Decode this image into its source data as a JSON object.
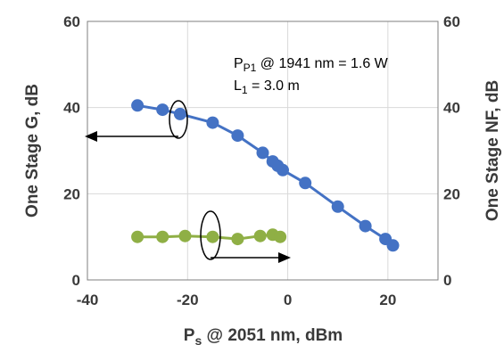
{
  "chart_data": {
    "type": "line",
    "xlabel": "P",
    "xlabel_sub": "s",
    "xlabel_rest": " @ 2051 nm, dBm",
    "ylabel_left": "One Stage G, dB",
    "ylabel_right": "One Stage NF, dB",
    "xlim": [
      -40,
      30
    ],
    "ylim_left": [
      0,
      60
    ],
    "ylim_right": [
      0,
      60
    ],
    "x_ticks": [
      -40,
      -20,
      0,
      20
    ],
    "y_ticks": [
      0,
      20,
      40,
      60
    ],
    "grid": true,
    "annotations": [
      {
        "parts": [
          {
            "t": "P"
          },
          {
            "t": "P1",
            "sub": true
          },
          {
            "t": " @ 1941 nm = 1.6 W"
          }
        ]
      },
      {
        "parts": [
          {
            "t": "L"
          },
          {
            "t": "1",
            "sub": true
          },
          {
            "t": " = 3.0 m"
          }
        ]
      }
    ],
    "series": [
      {
        "axis": "left",
        "color": "#4472c4",
        "x": [
          -30,
          -25,
          -21.5,
          -15,
          -10,
          -5,
          -3,
          -2,
          -1,
          3.5,
          10,
          15.5,
          19.5,
          21
        ],
        "y": [
          40.5,
          39.5,
          38.5,
          36.5,
          33.5,
          29.5,
          27.5,
          26.5,
          25.5,
          22.5,
          17,
          12.5,
          9.5,
          8
        ]
      },
      {
        "axis": "right",
        "color": "#8faf45",
        "x": [
          -30,
          -25,
          -20.5,
          -15,
          -10,
          -5.5,
          -3,
          -1.5
        ],
        "y": [
          10,
          10,
          10.2,
          10,
          9.5,
          10.2,
          10.5,
          10
        ]
      }
    ]
  }
}
